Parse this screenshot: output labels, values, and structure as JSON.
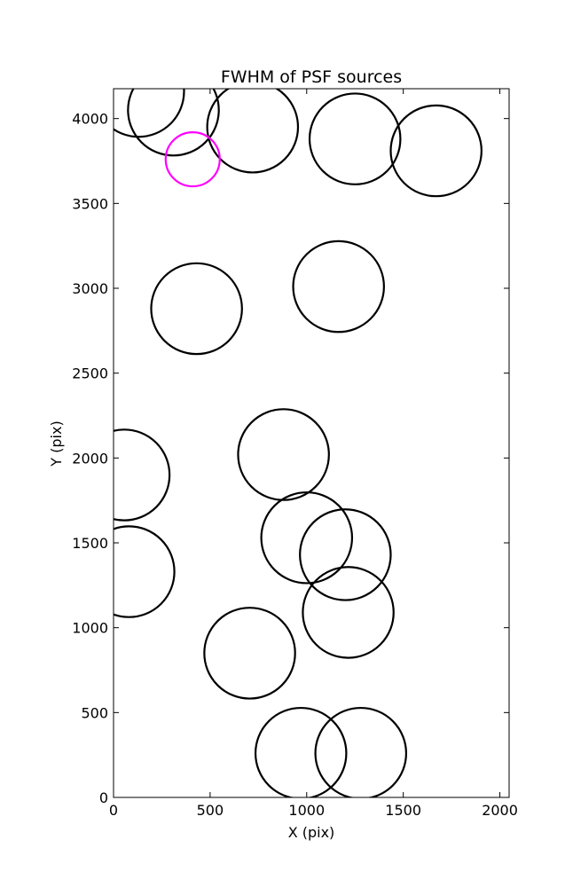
{
  "chart_data": {
    "type": "scatter",
    "title": "FWHM of PSF sources",
    "xlabel": "X (pix)",
    "ylabel": "Y (pix)",
    "xlim": [
      0,
      2048
    ],
    "ylim": [
      0,
      4176
    ],
    "xticks": [
      0,
      500,
      1000,
      1500,
      2000
    ],
    "yticks": [
      0,
      500,
      1000,
      1500,
      2000,
      2500,
      3000,
      3500,
      4000
    ],
    "grid": false,
    "marker": "open circle",
    "default_color": "#000000",
    "highlight_color": "#ff00ff",
    "series": [
      {
        "points": [
          {
            "x": 130,
            "y": 4160,
            "r": 235
          },
          {
            "x": 310,
            "y": 4050,
            "r": 235
          },
          {
            "x": 720,
            "y": 3950,
            "r": 235
          },
          {
            "x": 1250,
            "y": 3880,
            "r": 235
          },
          {
            "x": 1670,
            "y": 3810,
            "r": 235
          },
          {
            "x": 1165,
            "y": 3010,
            "r": 235
          },
          {
            "x": 430,
            "y": 2880,
            "r": 235
          },
          {
            "x": 880,
            "y": 2020,
            "r": 235
          },
          {
            "x": 55,
            "y": 1900,
            "r": 235
          },
          {
            "x": 1000,
            "y": 1530,
            "r": 235
          },
          {
            "x": 1200,
            "y": 1430,
            "r": 235
          },
          {
            "x": 80,
            "y": 1330,
            "r": 235
          },
          {
            "x": 1215,
            "y": 1090,
            "r": 235
          },
          {
            "x": 705,
            "y": 850,
            "r": 235
          },
          {
            "x": 970,
            "y": 260,
            "r": 235
          },
          {
            "x": 1280,
            "y": 260,
            "r": 235
          }
        ]
      },
      {
        "highlight": true,
        "points": [
          {
            "x": 410,
            "y": 3760,
            "r": 140
          }
        ]
      }
    ]
  }
}
